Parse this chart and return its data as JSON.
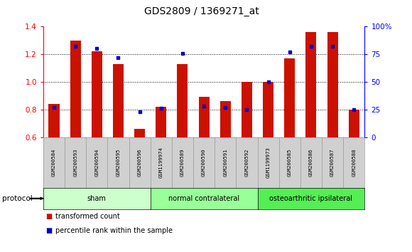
{
  "title": "GDS2809 / 1369271_at",
  "samples": [
    "GSM200584",
    "GSM200593",
    "GSM200594",
    "GSM200595",
    "GSM200596",
    "GSM1199974",
    "GSM200589",
    "GSM200590",
    "GSM200591",
    "GSM200592",
    "GSM1199973",
    "GSM200585",
    "GSM200586",
    "GSM200587",
    "GSM200588"
  ],
  "red_values": [
    0.84,
    1.3,
    1.22,
    1.13,
    0.66,
    0.82,
    1.13,
    0.89,
    0.86,
    1.0,
    1.0,
    1.17,
    1.36,
    1.36,
    0.8
  ],
  "blue_percentile": [
    27,
    82,
    80,
    72,
    23,
    26,
    76,
    28,
    27,
    25,
    50,
    77,
    82,
    82,
    25
  ],
  "ylim_left": [
    0.6,
    1.4
  ],
  "ylim_right": [
    0,
    100
  ],
  "yticks_left": [
    0.6,
    0.8,
    1.0,
    1.2,
    1.4
  ],
  "yticks_right": [
    0,
    25,
    50,
    75,
    100
  ],
  "ytick_labels_right": [
    "0",
    "25",
    "50",
    "75",
    "100%"
  ],
  "groups": [
    {
      "label": "sham",
      "start": 0,
      "end": 5,
      "color": "#ccffcc"
    },
    {
      "label": "normal contralateral",
      "start": 5,
      "end": 10,
      "color": "#99ff99"
    },
    {
      "label": "osteoarthritic ipsilateral",
      "start": 10,
      "end": 15,
      "color": "#55ee55"
    }
  ],
  "protocol_label": "protocol",
  "legend_red": "transformed count",
  "legend_blue": "percentile rank within the sample",
  "bar_color": "#cc1100",
  "dot_color": "#0000cc",
  "label_bg": "#d0d0d0"
}
